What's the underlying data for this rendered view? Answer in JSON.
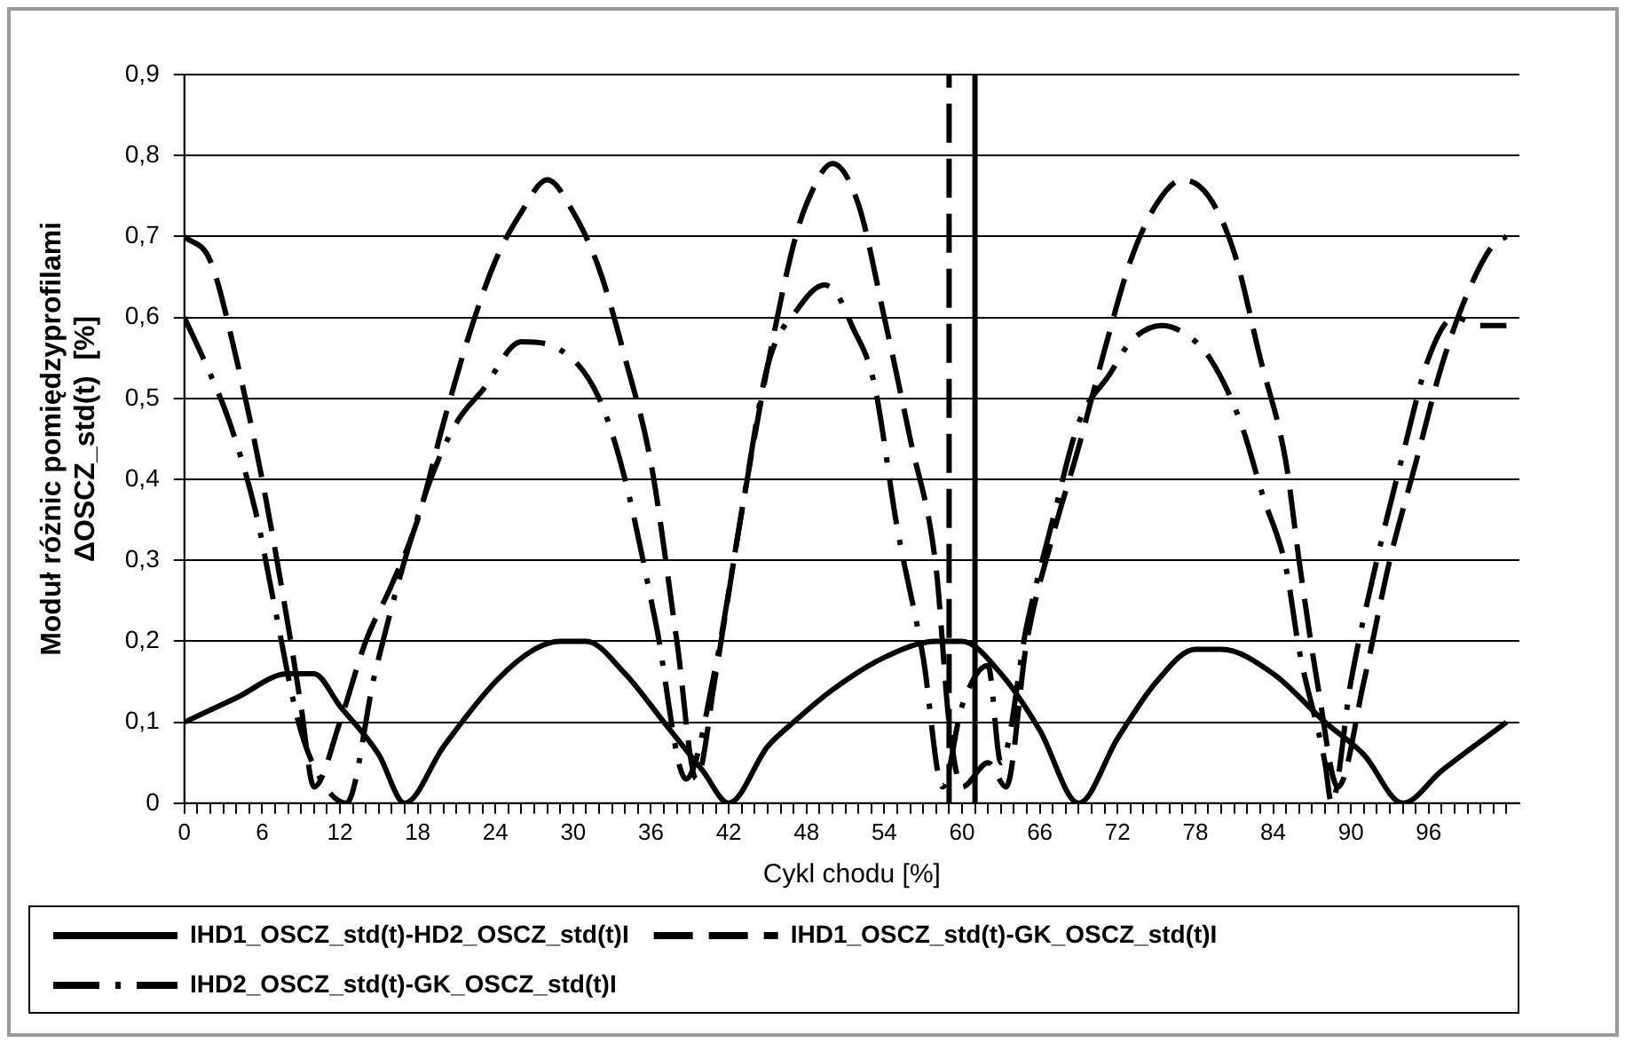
{
  "chart_data": {
    "type": "line",
    "xlabel": "Cykl chodu [%]",
    "ylabel": "Moduł różnic pomiędzyprofilami\nΔOSCZ_std(t)  [%]",
    "xlim": [
      0,
      103
    ],
    "xticks": [
      0,
      {
        "value": 1,
        "label": null
      },
      {
        "value": 2,
        "label": null
      },
      {
        "value": 3,
        "label": null
      },
      {
        "value": 4,
        "label": null
      },
      {
        "value": 5,
        "label": null
      },
      6,
      {
        "value": 7,
        "label": null
      },
      {
        "value": 8,
        "label": null
      },
      {
        "value": 9,
        "label": null
      },
      {
        "value": 10,
        "label": null
      },
      {
        "value": 11,
        "label": null
      },
      12,
      {
        "value": 13,
        "label": null
      },
      {
        "value": 14,
        "label": null
      },
      {
        "value": 15,
        "label": null
      },
      {
        "value": 16,
        "label": null
      },
      {
        "value": 17,
        "label": null
      },
      18,
      {
        "value": 19,
        "label": null
      },
      {
        "value": 20,
        "label": null
      },
      {
        "value": 21,
        "label": null
      },
      {
        "value": 22,
        "label": null
      },
      {
        "value": 23,
        "label": null
      },
      24,
      {
        "value": 25,
        "label": null
      },
      {
        "value": 26,
        "label": null
      },
      {
        "value": 27,
        "label": null
      },
      {
        "value": 28,
        "label": null
      },
      {
        "value": 29,
        "label": null
      },
      30,
      {
        "value": 31,
        "label": null
      },
      {
        "value": 32,
        "label": null
      },
      {
        "value": 33,
        "label": null
      },
      {
        "value": 34,
        "label": null
      },
      {
        "value": 35,
        "label": null
      },
      36,
      {
        "value": 37,
        "label": null
      },
      {
        "value": 38,
        "label": null
      },
      {
        "value": 39,
        "label": null
      },
      {
        "value": 40,
        "label": null
      },
      {
        "value": 41,
        "label": null
      },
      42,
      {
        "value": 43,
        "label": null
      },
      {
        "value": 44,
        "label": null
      },
      {
        "value": 45,
        "label": null
      },
      {
        "value": 46,
        "label": null
      },
      {
        "value": 47,
        "label": null
      },
      48,
      {
        "value": 49,
        "label": null
      },
      {
        "value": 50,
        "label": null
      },
      {
        "value": 51,
        "label": null
      },
      {
        "value": 52,
        "label": null
      },
      {
        "value": 53,
        "label": null
      },
      54,
      {
        "value": 55,
        "label": null
      },
      {
        "value": 56,
        "label": null
      },
      {
        "value": 57,
        "label": null
      },
      {
        "value": 58,
        "label": null
      },
      {
        "value": 59,
        "label": null
      },
      60,
      {
        "value": 61,
        "label": null
      },
      {
        "value": 62,
        "label": null
      },
      {
        "value": 63,
        "label": null
      },
      {
        "value": 64,
        "label": null
      },
      {
        "value": 65,
        "label": null
      },
      66,
      {
        "value": 67,
        "label": null
      },
      {
        "value": 68,
        "label": null
      },
      {
        "value": 69,
        "label": null
      },
      {
        "value": 70,
        "label": null
      },
      {
        "value": 71,
        "label": null
      },
      72,
      {
        "value": 73,
        "label": null
      },
      {
        "value": 74,
        "label": null
      },
      {
        "value": 75,
        "label": null
      },
      {
        "value": 76,
        "label": null
      },
      {
        "value": 77,
        "label": null
      },
      78,
      {
        "value": 79,
        "label": null
      },
      {
        "value": 80,
        "label": null
      },
      {
        "value": 81,
        "label": null
      },
      {
        "value": 82,
        "label": null
      },
      {
        "value": 83,
        "label": null
      },
      84,
      {
        "value": 85,
        "label": null
      },
      {
        "value": 86,
        "label": null
      },
      {
        "value": 87,
        "label": null
      },
      {
        "value": 88,
        "label": null
      },
      {
        "value": 89,
        "label": null
      },
      90,
      {
        "value": 91,
        "label": null
      },
      {
        "value": 92,
        "label": null
      },
      {
        "value": 93,
        "label": null
      },
      {
        "value": 94,
        "label": null
      },
      {
        "value": 95,
        "label": null
      },
      96,
      {
        "value": 97,
        "label": null
      },
      {
        "value": 98,
        "label": null
      },
      {
        "value": 99,
        "label": null
      },
      {
        "value": 100,
        "label": null
      },
      {
        "value": 101,
        "label": null
      },
      {
        "value": 102,
        "label": null
      }
    ],
    "ylim": [
      0,
      0.9
    ],
    "yticks": [
      0,
      {
        "value": 0.1,
        "label": "0,1"
      },
      {
        "value": 0.2,
        "label": "0,2"
      },
      {
        "value": 0.3,
        "label": "0,3"
      },
      {
        "value": 0.4,
        "label": "0,4"
      },
      {
        "value": 0.5,
        "label": "0,5"
      },
      {
        "value": 0.6,
        "label": "0,6"
      },
      {
        "value": 0.7,
        "label": "0,7"
      },
      {
        "value": 0.8,
        "label": "0,8"
      },
      {
        "value": 0.9,
        "label": "0,9"
      }
    ],
    "grid": "y",
    "legend": "bottom",
    "marker": "none",
    "series": [
      {
        "name": "IHD1_OSCZ_std(t)-HD2_OSCZ_std(t)I",
        "color": "#000000",
        "line_style": "solid",
        "x": [
          0,
          4,
          8,
          10,
          12,
          15,
          17,
          20,
          24,
          27,
          29,
          31,
          34,
          37,
          40,
          42,
          45,
          47,
          50,
          54,
          58,
          60,
          63,
          66,
          69,
          72,
          75,
          78,
          80,
          84,
          88,
          91,
          94,
          97,
          102
        ],
        "values": [
          0.1,
          0.13,
          0.16,
          0.16,
          0.12,
          0.06,
          0,
          0.07,
          0.15,
          0.19,
          0.2,
          0.2,
          0.16,
          0.1,
          0.04,
          0,
          0.07,
          0.1,
          0.14,
          0.18,
          0.2,
          0.2,
          0.16,
          0.09,
          0,
          0.08,
          0.15,
          0.19,
          0.19,
          0.16,
          0.1,
          0.06,
          0,
          0.04,
          0.1
        ]
      },
      {
        "name": "IHD1_OSCZ_std(t)-GK_OSCZ_std(t)I",
        "color": "#000000",
        "line_style": "dashed",
        "x": [
          0,
          2,
          4,
          6,
          8,
          9,
          10,
          12,
          14,
          16,
          18,
          20,
          22,
          24,
          26,
          28,
          30,
          32,
          34,
          36,
          38,
          39.5,
          41,
          43,
          45,
          47,
          48,
          50,
          52,
          54,
          56,
          58,
          59,
          60,
          62,
          63.4,
          65,
          67,
          69,
          71,
          73,
          75,
          77,
          79,
          81,
          83,
          85,
          86,
          87.5,
          89,
          91,
          93,
          95,
          97,
          99,
          101,
          102
        ],
        "values": [
          0.7,
          0.67,
          0.55,
          0.4,
          0.22,
          0.12,
          0.02,
          0.1,
          0.2,
          0.27,
          0.35,
          0.47,
          0.58,
          0.67,
          0.73,
          0.77,
          0.73,
          0.66,
          0.55,
          0.42,
          0.2,
          0.03,
          0.16,
          0.36,
          0.54,
          0.69,
          0.74,
          0.79,
          0.74,
          0.6,
          0.45,
          0.29,
          0.1,
          0.02,
          0.05,
          0.02,
          0.2,
          0.33,
          0.44,
          0.56,
          0.67,
          0.74,
          0.77,
          0.75,
          0.68,
          0.55,
          0.42,
          0.3,
          0.14,
          0.02,
          0.15,
          0.3,
          0.42,
          0.54,
          0.63,
          0.69,
          0.7
        ]
      },
      {
        "name": "IHD2_OSCZ_std(t)-GK_OSCZ_std(t)I",
        "color": "#000000",
        "line_style": "dashdot",
        "x": [
          0,
          2,
          3.5,
          5.5,
          7,
          8.8,
          10.5,
          12.5,
          14.7,
          17,
          19,
          21,
          23,
          26,
          29,
          32,
          34,
          36.4,
          38.7,
          41,
          43,
          45,
          47.3,
          49.4,
          50.3,
          51.5,
          53.2,
          55,
          57,
          58.5,
          60,
          62,
          63,
          65,
          67,
          69,
          71.4,
          73,
          75.4,
          77.2,
          79.1,
          81.5,
          83.2,
          85,
          86,
          88,
          88.5,
          90,
          92,
          94,
          96,
          98,
          100,
          102
        ],
        "values": [
          0.6,
          0.53,
          0.47,
          0.36,
          0.24,
          0.1,
          0.03,
          0.0,
          0.16,
          0.3,
          0.4,
          0.47,
          0.51,
          0.57,
          0.56,
          0.5,
          0.4,
          0.22,
          0.03,
          0.17,
          0.36,
          0.54,
          0.61,
          0.64,
          0.63,
          0.59,
          0.52,
          0.34,
          0.18,
          0.02,
          0.12,
          0.17,
          0.05,
          0.22,
          0.35,
          0.47,
          0.53,
          0.57,
          0.59,
          0.58,
          0.55,
          0.47,
          0.38,
          0.29,
          0.19,
          0.05,
          0,
          0.15,
          0.3,
          0.43,
          0.55,
          0.6,
          0.59,
          0.59
        ]
      }
    ],
    "ref_lines": [
      {
        "axis": "x",
        "value": 59,
        "color": "#000000",
        "line_style": "dashed"
      },
      {
        "axis": "x",
        "value": 61,
        "color": "#000000",
        "line_style": "solid"
      }
    ]
  }
}
